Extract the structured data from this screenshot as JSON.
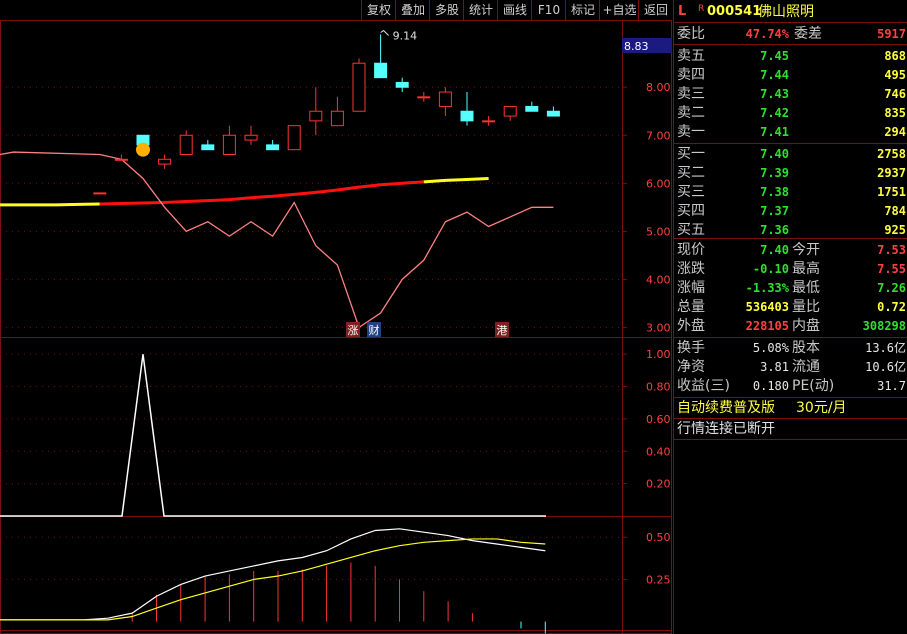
{
  "toolbar": {
    "items": [
      "复权",
      "叠加",
      "多股",
      "统计",
      "画线",
      "F10",
      "标记",
      "+自选",
      "返回"
    ]
  },
  "header": {
    "flag": "L",
    "sup": "R",
    "code": "000541",
    "name": "佛山照明"
  },
  "ratio": {
    "wb_label": "委比",
    "wb_value": "47.74%",
    "wc_label": "委差",
    "wc_value": "5917"
  },
  "asks": [
    {
      "label": "卖五",
      "price": "7.45",
      "vol": "868"
    },
    {
      "label": "卖四",
      "price": "7.44",
      "vol": "495"
    },
    {
      "label": "卖三",
      "price": "7.43",
      "vol": "746"
    },
    {
      "label": "卖二",
      "price": "7.42",
      "vol": "835"
    },
    {
      "label": "卖一",
      "price": "7.41",
      "vol": "294"
    }
  ],
  "bids": [
    {
      "label": "买一",
      "price": "7.40",
      "vol": "2758"
    },
    {
      "label": "买二",
      "price": "7.39",
      "vol": "2937"
    },
    {
      "label": "买三",
      "price": "7.38",
      "vol": "1751"
    },
    {
      "label": "买四",
      "price": "7.37",
      "vol": "784"
    },
    {
      "label": "买五",
      "price": "7.36",
      "vol": "925"
    }
  ],
  "stats": [
    {
      "l1": "现价",
      "v1": "7.40",
      "c1": "grn",
      "l2": "今开",
      "v2": "7.53",
      "c2": "red"
    },
    {
      "l1": "涨跌",
      "v1": "-0.10",
      "c1": "grn",
      "l2": "最高",
      "v2": "7.55",
      "c2": "red"
    },
    {
      "l1": "涨幅",
      "v1": "-1.33%",
      "c1": "grn",
      "l2": "最低",
      "v2": "7.26",
      "c2": "grn"
    },
    {
      "l1": "总量",
      "v1": "536403",
      "c1": "yel",
      "l2": "量比",
      "v2": "0.72",
      "c2": "yel"
    },
    {
      "l1": "外盘",
      "v1": "228105",
      "c1": "red",
      "l2": "内盘",
      "v2": "308298",
      "c2": "grn"
    }
  ],
  "fund": [
    {
      "l1": "换手",
      "v1": "5.08%",
      "l2": "股本",
      "v2": "13.6亿"
    },
    {
      "l1": "净资",
      "v1": "3.81",
      "l2": "流通",
      "v2": "10.6亿"
    },
    {
      "l1": "收益(三)",
      "v1": "0.180",
      "l2": "PE(动)",
      "v2": "31.7"
    }
  ],
  "notice": {
    "text": "自动续费普及版",
    "price": "30元/月",
    "status": "行情连接已断开"
  },
  "main_axis": {
    "labels": [
      "8.00",
      "7.00",
      "6.00",
      "5.00",
      "4.00",
      "3.00"
    ],
    "current": "8.83",
    "peak": "9.14"
  },
  "mid_axis": {
    "labels": [
      "1.00",
      "0.80",
      "0.60",
      "0.40",
      "0.20"
    ]
  },
  "low_axis": {
    "labels": [
      "0.50",
      "0.25"
    ]
  },
  "markers": [
    "涨",
    "财",
    "港"
  ],
  "colors": {
    "up": "#ff3232",
    "down": "#54ffff",
    "ma_red": "#ff1010",
    "ma_yellow": "#ffff20",
    "grid": "#7a1010",
    "pink": "#ff8080"
  },
  "chart_data": [
    {
      "type": "candlestick",
      "ylim": [
        2.8,
        9.4
      ],
      "ohlc": [
        [
          5.8,
          5.8,
          5.8,
          5.8
        ],
        [
          6.5,
          6.6,
          6.5,
          6.5
        ],
        [
          7.0,
          7.0,
          6.6,
          6.8
        ],
        [
          6.4,
          6.6,
          6.3,
          6.5
        ],
        [
          6.6,
          7.1,
          6.6,
          7.0
        ],
        [
          6.8,
          6.9,
          6.7,
          6.7
        ],
        [
          6.6,
          7.2,
          6.6,
          7.0
        ],
        [
          6.9,
          7.2,
          6.8,
          7.0
        ],
        [
          6.8,
          6.9,
          6.7,
          6.7
        ],
        [
          6.7,
          7.2,
          6.7,
          7.2
        ],
        [
          7.3,
          8.0,
          7.0,
          7.5
        ],
        [
          7.2,
          7.8,
          7.2,
          7.5
        ],
        [
          7.5,
          8.6,
          7.5,
          8.5
        ],
        [
          8.5,
          9.1,
          8.2,
          8.2
        ],
        [
          8.1,
          8.2,
          7.9,
          8.0
        ],
        [
          7.8,
          7.9,
          7.7,
          7.8
        ],
        [
          7.6,
          8.0,
          7.4,
          7.9
        ],
        [
          7.5,
          7.9,
          7.2,
          7.3
        ],
        [
          7.3,
          7.4,
          7.2,
          7.3
        ],
        [
          7.4,
          7.6,
          7.3,
          7.6
        ],
        [
          7.6,
          7.7,
          7.5,
          7.5
        ],
        [
          7.5,
          7.6,
          7.4,
          7.4
        ]
      ],
      "ma_slow": [
        5.55,
        5.55,
        5.56,
        5.57,
        5.58,
        5.59,
        5.6,
        5.62,
        5.64,
        5.66,
        5.7,
        5.73,
        5.77,
        5.81,
        5.86,
        5.92,
        5.97,
        6.0,
        6.03,
        6.06,
        6.08,
        6.1
      ],
      "ma_fast": [
        6.6,
        6.5,
        6.1,
        5.5,
        5.0,
        5.2,
        4.9,
        5.2,
        4.9,
        5.6,
        4.7,
        4.3,
        3.0,
        3.3,
        4.0,
        4.4,
        5.2,
        5.4,
        5.1,
        5.3,
        5.5,
        5.5
      ]
    },
    {
      "type": "line",
      "ylim": [
        0,
        1.1
      ],
      "values": [
        0,
        0,
        0,
        0,
        0,
        0,
        1.0,
        0,
        0,
        0,
        0,
        0,
        0,
        0,
        0,
        0,
        0,
        0,
        0,
        0,
        0,
        0
      ]
    },
    {
      "type": "line",
      "ylim": [
        -0.05,
        0.62
      ],
      "series": [
        {
          "values": [
            0.01,
            0.01,
            0.01,
            0.02,
            0.05,
            0.15,
            0.22,
            0.27,
            0.3,
            0.33,
            0.36,
            0.38,
            0.42,
            0.49,
            0.54,
            0.55,
            0.53,
            0.51,
            0.48,
            0.46,
            0.44,
            0.42
          ]
        },
        {
          "values": [
            0.01,
            0.01,
            0.01,
            0.01,
            0.03,
            0.08,
            0.13,
            0.17,
            0.21,
            0.25,
            0.27,
            0.3,
            0.34,
            0.38,
            0.42,
            0.45,
            0.47,
            0.48,
            0.49,
            0.49,
            0.47,
            0.46
          ]
        }
      ],
      "bars": [
        0.0,
        0.0,
        0.0,
        0.0,
        0.05,
        0.16,
        0.22,
        0.27,
        0.28,
        0.3,
        0.3,
        0.31,
        0.33,
        0.35,
        0.33,
        0.25,
        0.18,
        0.12,
        0.05,
        0.0,
        -0.04,
        -0.07
      ]
    }
  ]
}
